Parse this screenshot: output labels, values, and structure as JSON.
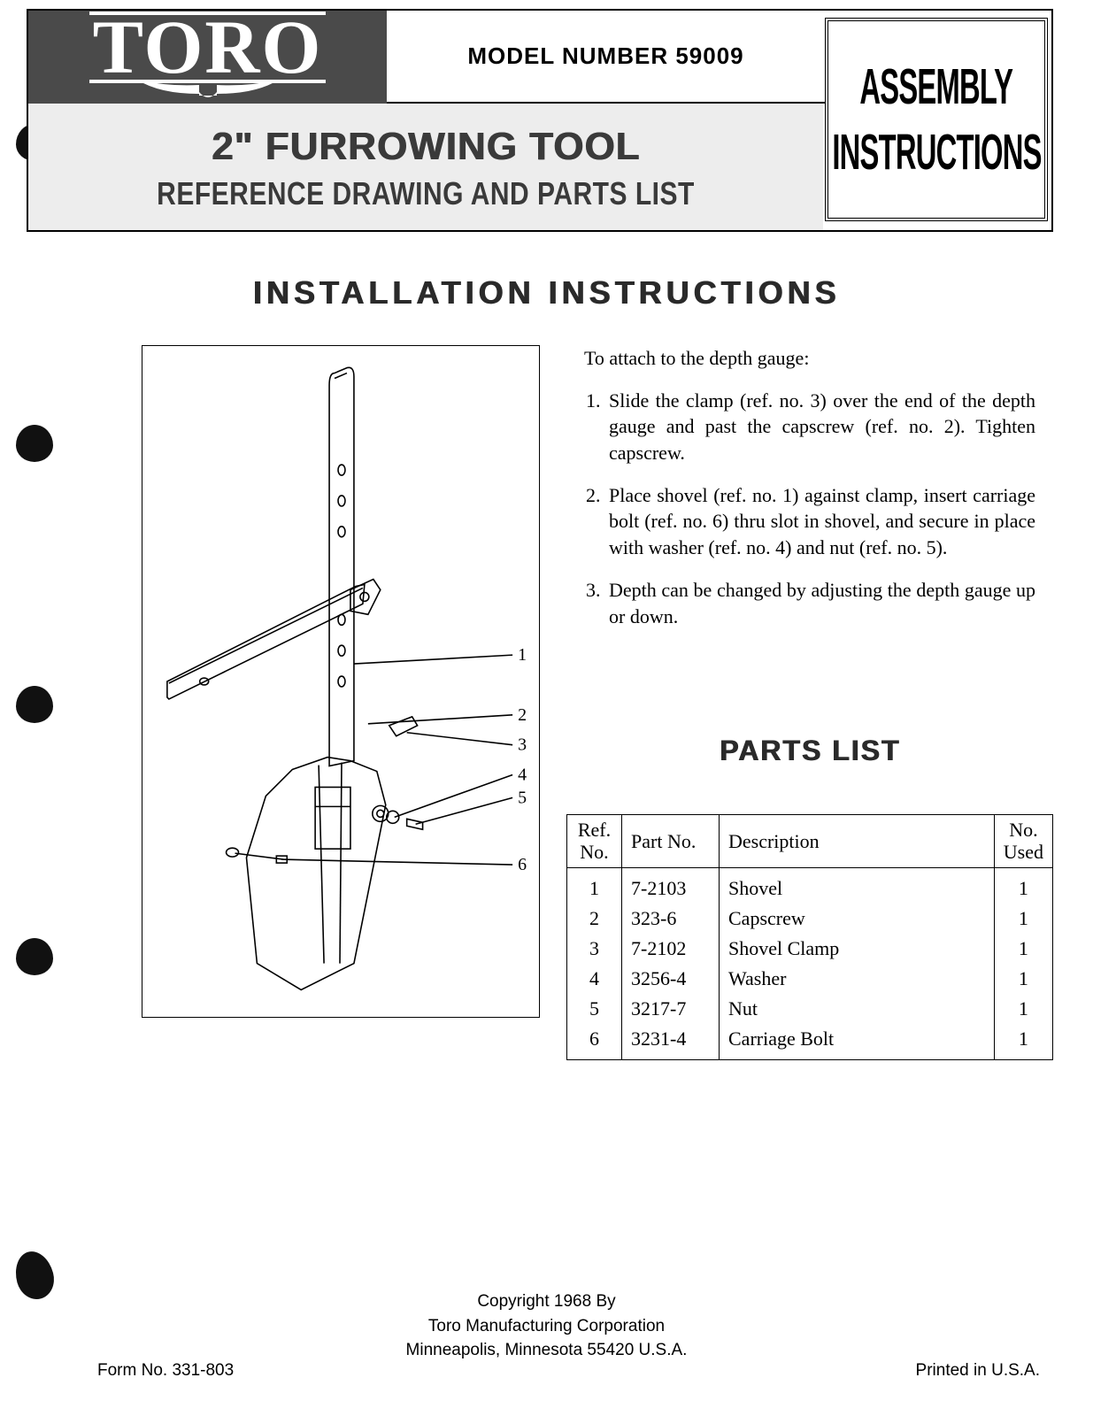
{
  "header": {
    "logo": "TORO",
    "model_label": "MODEL NUMBER 59009",
    "assembly": "ASSEMBLY",
    "instructions": "INSTRUCTIONS",
    "product_title": "2\" FURROWING TOOL",
    "subtitle": "REFERENCE DRAWING AND PARTS LIST"
  },
  "install": {
    "heading": "INSTALLATION  INSTRUCTIONS",
    "intro": "To attach to the depth gauge:",
    "steps": {
      "s1": "Slide the clamp (ref. no. 3) over the end of the depth gauge and past the capscrew (ref. no. 2). Tighten capscrew.",
      "s2": "Place shovel (ref. no. 1) against clamp, insert carriage bolt (ref. no. 6) thru slot in shovel, and secure in place with washer (ref. no. 4) and nut (ref. no. 5).",
      "s3": "Depth can be changed by adjusting the depth gauge up or down."
    }
  },
  "diagram": {
    "callouts": [
      "1",
      "2",
      "3",
      "4",
      "5",
      "6"
    ]
  },
  "parts": {
    "heading": "PARTS LIST",
    "columns": {
      "ref": "Ref.\nNo.",
      "part": "Part No.",
      "desc": "Description",
      "used": "No.\nUsed"
    },
    "rows": [
      {
        "ref": "1",
        "part": "7-2103",
        "desc": "Shovel",
        "used": "1"
      },
      {
        "ref": "2",
        "part": "323-6",
        "desc": "Capscrew",
        "used": "1"
      },
      {
        "ref": "3",
        "part": "7-2102",
        "desc": "Shovel Clamp",
        "used": "1"
      },
      {
        "ref": "4",
        "part": "3256-4",
        "desc": "Washer",
        "used": "1"
      },
      {
        "ref": "5",
        "part": "3217-7",
        "desc": "Nut",
        "used": "1"
      },
      {
        "ref": "6",
        "part": "3231-4",
        "desc": "Carriage Bolt",
        "used": "1"
      }
    ]
  },
  "footer": {
    "copyright_l1": "Copyright 1968 By",
    "copyright_l2": "Toro Manufacturing Corporation",
    "copyright_l3": "Minneapolis, Minnesota  55420  U.S.A.",
    "form_no": "Form No. 331-803",
    "printed": "Printed in U.S.A."
  },
  "styling": {
    "page_bg": "#ffffff",
    "text_color": "#000000",
    "logo_bg": "#4a4a4a",
    "title_band_bg": "#ededed",
    "heading_color": "#2a2a2a",
    "border_color": "#000000",
    "body_font": "Times New Roman",
    "heading_font": "Arial"
  }
}
